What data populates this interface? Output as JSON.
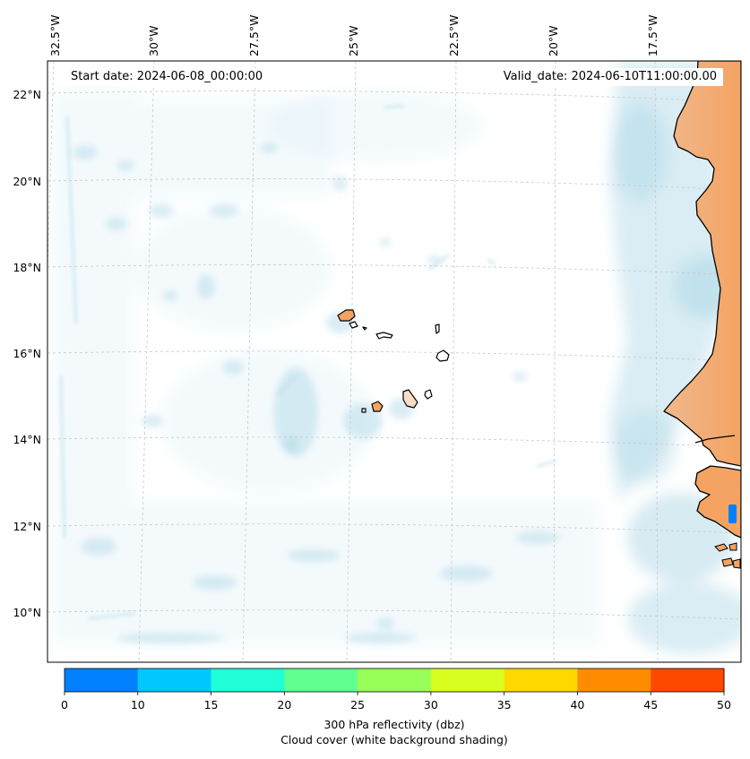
{
  "header": {
    "start_date": "Start date: 2024-06-08_00:00:00",
    "valid_date": "Valid_date: 2024-06-10T11:00:00.00"
  },
  "map": {
    "lon_labels": [
      "32.5°W",
      "30°W",
      "27.5°W",
      "25°W",
      "22.5°W",
      "20°W",
      "17.5°W"
    ],
    "lat_labels": [
      "22°N",
      "20°N",
      "18°N",
      "16°N",
      "14°N",
      "12°N",
      "10°N"
    ],
    "colors": {
      "land": "#f4a362",
      "coast": "#000000",
      "cloud": "#add8e6",
      "grid": "#c8c8c8",
      "echo": "#0080ff"
    }
  },
  "colorbar": {
    "ticks": [
      "0",
      "10",
      "15",
      "20",
      "25",
      "30",
      "35",
      "40",
      "45",
      "50"
    ],
    "colors": [
      "#0080ff",
      "#00c8ff",
      "#20ffd8",
      "#60ff90",
      "#98ff58",
      "#d8ff20",
      "#ffd800",
      "#ff8c00",
      "#ff4800"
    ],
    "label_main": "300 hPa reflectivity (dbz)",
    "label_sub": "Cloud cover (white background shading)"
  }
}
